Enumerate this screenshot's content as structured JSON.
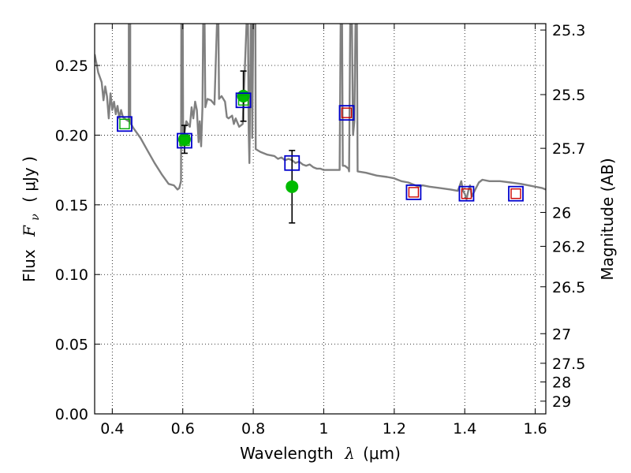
{
  "chart_data": {
    "type": "scatter",
    "xlabel": "Wavelength",
    "xlabel_symbol": "λ",
    "xlabel_unit": "(μm)",
    "ylabel": "Flux",
    "ylabel_symbol": "F",
    "ylabel_subscript": "ν",
    "ylabel_unit": "( μJy )",
    "y2label": "Magnitude (AB)",
    "xlim": [
      0.35,
      1.63
    ],
    "ylim": [
      0.0,
      0.28
    ],
    "grid": true,
    "x_ticks": [
      {
        "value": 0.4,
        "label": "0.4"
      },
      {
        "value": 0.6,
        "label": "0.6"
      },
      {
        "value": 0.8,
        "label": "0.8"
      },
      {
        "value": 1.0,
        "label": "1"
      },
      {
        "value": 1.2,
        "label": "1.2"
      },
      {
        "value": 1.4,
        "label": "1.4"
      },
      {
        "value": 1.6,
        "label": "1.6"
      }
    ],
    "y_ticks": [
      {
        "value": 0.0,
        "label": "0.00"
      },
      {
        "value": 0.05,
        "label": "0.05"
      },
      {
        "value": 0.1,
        "label": "0.10"
      },
      {
        "value": 0.15,
        "label": "0.15"
      },
      {
        "value": 0.2,
        "label": "0.20"
      },
      {
        "value": 0.25,
        "label": "0.25"
      }
    ],
    "magnitude_ticks": [
      {
        "mag": 25.3,
        "label": "25.3"
      },
      {
        "mag": 25.5,
        "label": "25.5"
      },
      {
        "mag": 25.7,
        "label": "25.7"
      },
      {
        "mag": 26.0,
        "label": "26"
      },
      {
        "mag": 26.2,
        "label": "26.2"
      },
      {
        "mag": 26.5,
        "label": "26.5"
      },
      {
        "mag": 27.0,
        "label": "27"
      },
      {
        "mag": 27.5,
        "label": "27.5"
      },
      {
        "mag": 28.0,
        "label": "28"
      },
      {
        "mag": 29.0,
        "label": "29"
      }
    ],
    "model_sed": {
      "color": "#808080",
      "points": [
        [
          0.35,
          0.258
        ],
        [
          0.36,
          0.245
        ],
        [
          0.37,
          0.238
        ],
        [
          0.375,
          0.225
        ],
        [
          0.38,
          0.235
        ],
        [
          0.385,
          0.228
        ],
        [
          0.39,
          0.212
        ],
        [
          0.395,
          0.23
        ],
        [
          0.4,
          0.218
        ],
        [
          0.405,
          0.224
        ],
        [
          0.41,
          0.215
        ],
        [
          0.415,
          0.221
        ],
        [
          0.42,
          0.212
        ],
        [
          0.425,
          0.218
        ],
        [
          0.43,
          0.213
        ],
        [
          0.435,
          0.212
        ],
        [
          0.44,
          0.211
        ],
        [
          0.447,
          0.21
        ],
        [
          0.447,
          0.28
        ],
        [
          0.451,
          0.28
        ],
        [
          0.451,
          0.209
        ],
        [
          0.46,
          0.205
        ],
        [
          0.48,
          0.198
        ],
        [
          0.5,
          0.189
        ],
        [
          0.52,
          0.18
        ],
        [
          0.54,
          0.172
        ],
        [
          0.56,
          0.165
        ],
        [
          0.575,
          0.164
        ],
        [
          0.585,
          0.161
        ],
        [
          0.59,
          0.162
        ],
        [
          0.595,
          0.167
        ],
        [
          0.596,
          0.28
        ],
        [
          0.6,
          0.28
        ],
        [
          0.601,
          0.196
        ],
        [
          0.61,
          0.21
        ],
        [
          0.62,
          0.206
        ],
        [
          0.625,
          0.22
        ],
        [
          0.63,
          0.212
        ],
        [
          0.635,
          0.224
        ],
        [
          0.64,
          0.218
        ],
        [
          0.645,
          0.195
        ],
        [
          0.648,
          0.21
        ],
        [
          0.652,
          0.192
        ],
        [
          0.656,
          0.22
        ],
        [
          0.658,
          0.28
        ],
        [
          0.662,
          0.28
        ],
        [
          0.664,
          0.22
        ],
        [
          0.67,
          0.226
        ],
        [
          0.68,
          0.225
        ],
        [
          0.69,
          0.222
        ],
        [
          0.697,
          0.28
        ],
        [
          0.701,
          0.28
        ],
        [
          0.703,
          0.226
        ],
        [
          0.71,
          0.228
        ],
        [
          0.72,
          0.224
        ],
        [
          0.725,
          0.213
        ],
        [
          0.73,
          0.212
        ],
        [
          0.74,
          0.214
        ],
        [
          0.745,
          0.208
        ],
        [
          0.75,
          0.212
        ],
        [
          0.76,
          0.206
        ],
        [
          0.77,
          0.208
        ],
        [
          0.781,
          0.28
        ],
        [
          0.785,
          0.28
        ],
        [
          0.787,
          0.203
        ],
        [
          0.789,
          0.18
        ],
        [
          0.79,
          0.2
        ],
        [
          0.793,
          0.28
        ],
        [
          0.796,
          0.28
        ],
        [
          0.797,
          0.198
        ],
        [
          0.8,
          0.28
        ],
        [
          0.806,
          0.28
        ],
        [
          0.807,
          0.19
        ],
        [
          0.82,
          0.188
        ],
        [
          0.84,
          0.186
        ],
        [
          0.86,
          0.185
        ],
        [
          0.87,
          0.183
        ],
        [
          0.88,
          0.184
        ],
        [
          0.89,
          0.182
        ],
        [
          0.9,
          0.183
        ],
        [
          0.91,
          0.182
        ],
        [
          0.92,
          0.18
        ],
        [
          0.93,
          0.181
        ],
        [
          0.94,
          0.179
        ],
        [
          0.95,
          0.178
        ],
        [
          0.96,
          0.179
        ],
        [
          0.97,
          0.177
        ],
        [
          0.98,
          0.176
        ],
        [
          0.99,
          0.176
        ],
        [
          1.0,
          0.175
        ],
        [
          1.02,
          0.175
        ],
        [
          1.04,
          0.175
        ],
        [
          1.045,
          0.175
        ],
        [
          1.048,
          0.28
        ],
        [
          1.052,
          0.28
        ],
        [
          1.054,
          0.178
        ],
        [
          1.06,
          0.178
        ],
        [
          1.07,
          0.176
        ],
        [
          1.072,
          0.174
        ],
        [
          1.075,
          0.28
        ],
        [
          1.08,
          0.28
        ],
        [
          1.083,
          0.2
        ],
        [
          1.087,
          0.21
        ],
        [
          1.09,
          0.28
        ],
        [
          1.094,
          0.28
        ],
        [
          1.096,
          0.174
        ],
        [
          1.12,
          0.173
        ],
        [
          1.15,
          0.171
        ],
        [
          1.18,
          0.17
        ],
        [
          1.2,
          0.169
        ],
        [
          1.22,
          0.167
        ],
        [
          1.24,
          0.166
        ],
        [
          1.26,
          0.164
        ],
        [
          1.27,
          0.163
        ],
        [
          1.28,
          0.164
        ],
        [
          1.3,
          0.163
        ],
        [
          1.33,
          0.162
        ],
        [
          1.36,
          0.161
        ],
        [
          1.38,
          0.16
        ],
        [
          1.385,
          0.163
        ],
        [
          1.39,
          0.167
        ],
        [
          1.395,
          0.16
        ],
        [
          1.4,
          0.158
        ],
        [
          1.405,
          0.154
        ],
        [
          1.41,
          0.16
        ],
        [
          1.415,
          0.164
        ],
        [
          1.42,
          0.156
        ],
        [
          1.43,
          0.161
        ],
        [
          1.44,
          0.166
        ],
        [
          1.45,
          0.168
        ],
        [
          1.47,
          0.167
        ],
        [
          1.5,
          0.167
        ],
        [
          1.53,
          0.166
        ],
        [
          1.56,
          0.165
        ],
        [
          1.58,
          0.164
        ],
        [
          1.6,
          0.163
        ],
        [
          1.62,
          0.162
        ],
        [
          1.63,
          0.161
        ]
      ]
    },
    "model_photometry": {
      "marker": "square",
      "edge_color": "#0000cc",
      "points": [
        {
          "x": 0.435,
          "y": 0.208,
          "inner": "#00aa00"
        },
        {
          "x": 0.605,
          "y": 0.196,
          "inner": "#00aa00"
        },
        {
          "x": 0.772,
          "y": 0.225,
          "inner": "#00aa00"
        },
        {
          "x": 0.91,
          "y": 0.18,
          "inner": ""
        },
        {
          "x": 1.065,
          "y": 0.216,
          "inner": "#cc0000"
        },
        {
          "x": 1.255,
          "y": 0.159,
          "inner": "#cc0000"
        },
        {
          "x": 1.405,
          "y": 0.158,
          "inner": "#cc0000"
        },
        {
          "x": 1.545,
          "y": 0.158,
          "inner": "#cc0000"
        }
      ]
    },
    "observed_photometry": {
      "marker": "circle",
      "color": "#00bb00",
      "points": [
        {
          "x": 0.605,
          "y": 0.197,
          "err": 0.01
        },
        {
          "x": 0.772,
          "y": 0.228,
          "err": 0.018
        },
        {
          "x": 0.91,
          "y": 0.163,
          "err": 0.026
        }
      ]
    }
  }
}
